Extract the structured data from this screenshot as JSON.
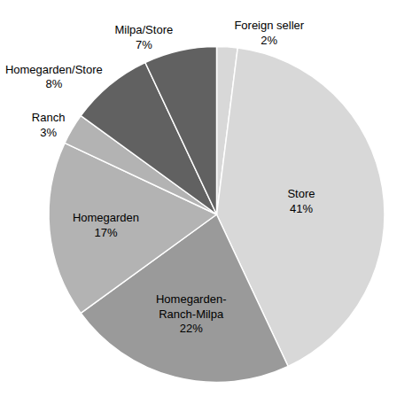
{
  "chart_data": {
    "type": "pie",
    "categories": [
      "Foreign seller",
      "Store",
      "Homegarden-\nRanch-Milpa",
      "Homegarden",
      "Ranch",
      "Homegarden/Store",
      "Milpa/Store"
    ],
    "values": [
      2,
      41,
      22,
      17,
      3,
      8,
      7
    ],
    "value_labels": [
      "2%",
      "41%",
      "22%",
      "17%",
      "3%",
      "8%",
      "7%"
    ],
    "colors": [
      "#d8d8d8",
      "#d8d8d8",
      "#9a9a9a",
      "#b3b3b3",
      "#b3b3b3",
      "#616161",
      "#616161"
    ]
  }
}
